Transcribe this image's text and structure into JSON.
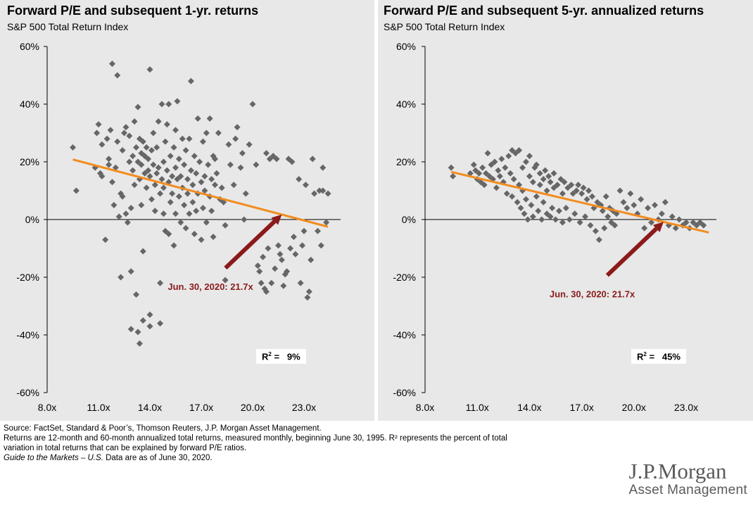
{
  "panels": [
    {
      "title": "Forward P/E and subsequent 1-yr. returns",
      "subtitle": "S&P 500 Total Return Index",
      "r2_label": "9%",
      "annotation": "Jun. 30, 2020: 21.7x"
    },
    {
      "title": "Forward P/E and subsequent 5-yr. annualized returns",
      "subtitle": "S&P 500 Total Return Index",
      "r2_label": "45%",
      "annotation": "Jun. 30, 2020: 21.7x"
    }
  ],
  "footnotes": {
    "line1": "Source: FactSet, Standard & Poor’s, Thomson Reuters, J.P. Morgan Asset Management.",
    "line2": "Returns are 12-month and 60-month annualized total returns, measured monthly, beginning June 30, 1995. R² represents the percent of total",
    "line3": "variation in total returns that can be explained by forward P/E ratios.",
    "line4_italic": "Guide to the Markets – U.S.",
    "line4_rest": " Data are as of June 30, 2020."
  },
  "logo": {
    "line1": "J.P.Morgan",
    "line2": "Asset Management"
  },
  "colors": {
    "points": "#666666",
    "trend": "#f28c1e",
    "arrow": "#8b1a1a",
    "panel_bg": "#e8e8e8"
  },
  "chart_data": [
    {
      "type": "scatter",
      "title": "Forward P/E and subsequent 1-yr. returns",
      "subtitle": "S&P 500 Total Return Index",
      "xlim": [
        8.0,
        24.5
      ],
      "ylim": [
        -60,
        60
      ],
      "x_ticks": [
        8,
        11,
        14,
        17,
        20,
        23
      ],
      "x_tick_labels": [
        "8.0x",
        "11.0x",
        "14.0x",
        "17.0x",
        "20.0x",
        "23.0x"
      ],
      "y_ticks": [
        60,
        40,
        20,
        0,
        -20,
        -40,
        -60
      ],
      "y_tick_labels": [
        "60%",
        "40%",
        "20%",
        "0%",
        "-20%",
        "-40%",
        "-60%"
      ],
      "grid": false,
      "r_squared": 9,
      "trendline": [
        [
          9.5,
          20.8
        ],
        [
          24.4,
          -2.5
        ]
      ],
      "current_pe": 21.7,
      "annotation": "Jun. 30, 2020: 21.7x",
      "points": [
        [
          9.5,
          25
        ],
        [
          9.7,
          10
        ],
        [
          10.8,
          18
        ],
        [
          10.9,
          30
        ],
        [
          11.0,
          33
        ],
        [
          11.1,
          16
        ],
        [
          11.2,
          15
        ],
        [
          11.2,
          26
        ],
        [
          11.4,
          -7
        ],
        [
          11.5,
          28
        ],
        [
          11.6,
          19
        ],
        [
          11.6,
          21
        ],
        [
          11.7,
          31
        ],
        [
          11.8,
          54
        ],
        [
          11.8,
          13
        ],
        [
          11.9,
          5
        ],
        [
          12.0,
          18
        ],
        [
          12.1,
          50
        ],
        [
          12.1,
          27
        ],
        [
          12.2,
          1
        ],
        [
          12.3,
          -20
        ],
        [
          12.3,
          9
        ],
        [
          12.4,
          24
        ],
        [
          12.4,
          8
        ],
        [
          12.5,
          30
        ],
        [
          12.6,
          32
        ],
        [
          12.6,
          2
        ],
        [
          12.7,
          -1
        ],
        [
          12.8,
          20
        ],
        [
          12.8,
          29
        ],
        [
          12.9,
          -18
        ],
        [
          12.9,
          -38
        ],
        [
          12.9,
          4
        ],
        [
          13.0,
          17
        ],
        [
          13.0,
          22
        ],
        [
          13.1,
          34
        ],
        [
          13.1,
          12
        ],
        [
          13.2,
          25
        ],
        [
          13.2,
          -26
        ],
        [
          13.3,
          39
        ],
        [
          13.3,
          20
        ],
        [
          13.3,
          -39
        ],
        [
          13.4,
          -43
        ],
        [
          13.4,
          14
        ],
        [
          13.4,
          28
        ],
        [
          13.5,
          23
        ],
        [
          13.5,
          19
        ],
        [
          13.5,
          5
        ],
        [
          13.6,
          -35
        ],
        [
          13.6,
          -11
        ],
        [
          13.6,
          27
        ],
        [
          13.7,
          16
        ],
        [
          13.7,
          22
        ],
        [
          13.8,
          11
        ],
        [
          13.8,
          25
        ],
        [
          13.9,
          17
        ],
        [
          13.9,
          21
        ],
        [
          14.0,
          52
        ],
        [
          14.0,
          -33
        ],
        [
          14.0,
          -37
        ],
        [
          14.0,
          15
        ],
        [
          14.1,
          24
        ],
        [
          14.1,
          7
        ],
        [
          14.2,
          19
        ],
        [
          14.2,
          30
        ],
        [
          14.3,
          12
        ],
        [
          14.3,
          3
        ],
        [
          14.4,
          16
        ],
        [
          14.4,
          25
        ],
        [
          14.5,
          18
        ],
        [
          14.5,
          34
        ],
        [
          14.6,
          9
        ],
        [
          14.6,
          -22
        ],
        [
          14.6,
          -36
        ],
        [
          14.7,
          14
        ],
        [
          14.7,
          40
        ],
        [
          14.8,
          2
        ],
        [
          14.8,
          20
        ],
        [
          14.8,
          11
        ],
        [
          14.9,
          27
        ],
        [
          14.9,
          -4
        ],
        [
          15.0,
          17
        ],
        [
          15.0,
          33
        ],
        [
          15.1,
          13
        ],
        [
          15.1,
          -5
        ],
        [
          15.1,
          40
        ],
        [
          15.2,
          6
        ],
        [
          15.2,
          22
        ],
        [
          15.3,
          15
        ],
        [
          15.3,
          9
        ],
        [
          15.4,
          -9
        ],
        [
          15.4,
          25
        ],
        [
          15.5,
          31
        ],
        [
          15.5,
          18
        ],
        [
          15.5,
          2
        ],
        [
          15.6,
          14
        ],
        [
          15.6,
          41
        ],
        [
          15.7,
          8
        ],
        [
          15.7,
          21
        ],
        [
          15.8,
          -1
        ],
        [
          15.8,
          15
        ],
        [
          15.9,
          28
        ],
        [
          15.9,
          11
        ],
        [
          16.0,
          5
        ],
        [
          16.0,
          19
        ],
        [
          16.1,
          24
        ],
        [
          16.1,
          -3
        ],
        [
          16.2,
          14
        ],
        [
          16.2,
          9
        ],
        [
          16.3,
          28
        ],
        [
          16.3,
          2
        ],
        [
          16.4,
          48
        ],
        [
          16.4,
          17
        ],
        [
          16.5,
          6
        ],
        [
          16.5,
          12
        ],
        [
          16.6,
          22
        ],
        [
          16.6,
          -5
        ],
        [
          16.7,
          16
        ],
        [
          16.7,
          3
        ],
        [
          16.8,
          35
        ],
        [
          16.8,
          9
        ],
        [
          16.9,
          20
        ],
        [
          17.0,
          13
        ],
        [
          17.0,
          -7
        ],
        [
          17.1,
          27
        ],
        [
          17.1,
          4
        ],
        [
          17.2,
          15
        ],
        [
          17.2,
          10
        ],
        [
          17.3,
          30
        ],
        [
          17.3,
          -1
        ],
        [
          17.4,
          19
        ],
        [
          17.5,
          8
        ],
        [
          17.5,
          35
        ],
        [
          17.6,
          14
        ],
        [
          17.6,
          3
        ],
        [
          17.7,
          22
        ],
        [
          17.7,
          -6
        ],
        [
          17.8,
          12
        ],
        [
          17.8,
          21
        ],
        [
          17.9,
          16
        ],
        [
          18.0,
          30
        ],
        [
          18.1,
          7
        ],
        [
          18.2,
          11
        ],
        [
          18.3,
          6
        ],
        [
          18.4,
          -2
        ],
        [
          18.4,
          -21
        ],
        [
          18.6,
          26
        ],
        [
          18.7,
          19
        ],
        [
          18.9,
          12
        ],
        [
          19.0,
          28
        ],
        [
          19.1,
          32
        ],
        [
          19.3,
          18
        ],
        [
          19.4,
          23
        ],
        [
          19.5,
          0
        ],
        [
          19.6,
          9
        ],
        [
          19.8,
          26
        ],
        [
          20.0,
          40
        ],
        [
          20.2,
          19
        ],
        [
          20.3,
          -16
        ],
        [
          20.4,
          -18
        ],
        [
          20.5,
          -22
        ],
        [
          20.6,
          -13
        ],
        [
          20.7,
          -24
        ],
        [
          20.8,
          23
        ],
        [
          20.8,
          -25
        ],
        [
          20.9,
          -10
        ],
        [
          21.0,
          21
        ],
        [
          21.1,
          -22
        ],
        [
          21.2,
          22
        ],
        [
          21.3,
          -17
        ],
        [
          21.4,
          21
        ],
        [
          21.5,
          -9
        ],
        [
          21.6,
          -12
        ],
        [
          21.7,
          -14
        ],
        [
          21.8,
          -23
        ],
        [
          21.9,
          -19
        ],
        [
          22.0,
          -18
        ],
        [
          22.1,
          21
        ],
        [
          22.2,
          -10
        ],
        [
          22.3,
          20
        ],
        [
          22.4,
          -6
        ],
        [
          22.5,
          -12
        ],
        [
          22.7,
          14
        ],
        [
          22.8,
          -22
        ],
        [
          22.9,
          -9
        ],
        [
          23.0,
          -4
        ],
        [
          23.1,
          12
        ],
        [
          23.2,
          -27
        ],
        [
          23.3,
          -25
        ],
        [
          23.4,
          -14
        ],
        [
          23.5,
          21
        ],
        [
          23.6,
          9
        ],
        [
          23.8,
          -4
        ],
        [
          23.9,
          10
        ],
        [
          24.0,
          -9
        ],
        [
          24.1,
          18
        ],
        [
          24.1,
          10
        ],
        [
          24.3,
          -1
        ],
        [
          24.4,
          9
        ]
      ]
    },
    {
      "type": "scatter",
      "title": "Forward P/E and subsequent 5-yr. annualized returns",
      "subtitle": "S&P 500 Total Return Index",
      "xlim": [
        8.0,
        24.5
      ],
      "ylim": [
        -60,
        60
      ],
      "x_ticks": [
        8,
        11,
        14,
        17,
        20,
        23
      ],
      "x_tick_labels": [
        "8.0x",
        "11.0x",
        "14.0x",
        "17.0x",
        "20.0x",
        "23.0x"
      ],
      "y_ticks": [
        60,
        40,
        20,
        0,
        -20,
        -40,
        -60
      ],
      "y_tick_labels": [
        "60%",
        "40%",
        "20%",
        "0%",
        "-20%",
        "-40%",
        "-60%"
      ],
      "grid": false,
      "r_squared": 45,
      "trendline": [
        [
          9.5,
          16.5
        ],
        [
          24.3,
          -4.5
        ]
      ],
      "current_pe": 21.7,
      "annotation": "Jun. 30, 2020: 21.7x",
      "points": [
        [
          9.5,
          18
        ],
        [
          9.6,
          15
        ],
        [
          10.6,
          16
        ],
        [
          10.8,
          19
        ],
        [
          10.9,
          17
        ],
        [
          11.0,
          14
        ],
        [
          11.1,
          16
        ],
        [
          11.2,
          13
        ],
        [
          11.3,
          18
        ],
        [
          11.4,
          12
        ],
        [
          11.5,
          16
        ],
        [
          11.6,
          23
        ],
        [
          11.7,
          15
        ],
        [
          11.8,
          19
        ],
        [
          11.9,
          14
        ],
        [
          12.0,
          20
        ],
        [
          12.1,
          11
        ],
        [
          12.2,
          17
        ],
        [
          12.3,
          15
        ],
        [
          12.4,
          21
        ],
        [
          12.5,
          13
        ],
        [
          12.6,
          18
        ],
        [
          12.7,
          9
        ],
        [
          12.8,
          22
        ],
        [
          12.9,
          16
        ],
        [
          13.0,
          24
        ],
        [
          13.0,
          8
        ],
        [
          13.1,
          14
        ],
        [
          13.2,
          23
        ],
        [
          13.3,
          6
        ],
        [
          13.4,
          12
        ],
        [
          13.4,
          24
        ],
        [
          13.5,
          4
        ],
        [
          13.6,
          18
        ],
        [
          13.6,
          10
        ],
        [
          13.7,
          2
        ],
        [
          13.8,
          20
        ],
        [
          13.8,
          7
        ],
        [
          13.9,
          0
        ],
        [
          14.0,
          15
        ],
        [
          14.0,
          22
        ],
        [
          14.1,
          5
        ],
        [
          14.2,
          13
        ],
        [
          14.2,
          1
        ],
        [
          14.3,
          18
        ],
        [
          14.4,
          8
        ],
        [
          14.4,
          19
        ],
        [
          14.5,
          3
        ],
        [
          14.6,
          12
        ],
        [
          14.6,
          16
        ],
        [
          14.7,
          0
        ],
        [
          14.8,
          14
        ],
        [
          14.8,
          6
        ],
        [
          14.9,
          17
        ],
        [
          15.0,
          2
        ],
        [
          15.0,
          10
        ],
        [
          15.1,
          15
        ],
        [
          15.2,
          1
        ],
        [
          15.2,
          13
        ],
        [
          15.3,
          4
        ],
        [
          15.4,
          11
        ],
        [
          15.4,
          16
        ],
        [
          15.5,
          0
        ],
        [
          15.6,
          12
        ],
        [
          15.7,
          3
        ],
        [
          15.8,
          14
        ],
        [
          15.9,
          9
        ],
        [
          15.9,
          -1
        ],
        [
          16.0,
          13
        ],
        [
          16.1,
          4
        ],
        [
          16.2,
          11
        ],
        [
          16.3,
          0
        ],
        [
          16.4,
          12
        ],
        [
          16.5,
          9
        ],
        [
          16.6,
          2
        ],
        [
          16.7,
          10
        ],
        [
          16.8,
          12
        ],
        [
          16.9,
          -1
        ],
        [
          17.0,
          9
        ],
        [
          17.1,
          11
        ],
        [
          17.2,
          1
        ],
        [
          17.3,
          7
        ],
        [
          17.4,
          10
        ],
        [
          17.5,
          -2
        ],
        [
          17.6,
          8
        ],
        [
          17.7,
          4
        ],
        [
          17.8,
          -4
        ],
        [
          17.9,
          6
        ],
        [
          18.0,
          -7
        ],
        [
          18.1,
          5
        ],
        [
          18.2,
          3
        ],
        [
          18.3,
          -3
        ],
        [
          18.4,
          8
        ],
        [
          18.5,
          1
        ],
        [
          18.6,
          4
        ],
        [
          18.7,
          -1
        ],
        [
          18.8,
          3
        ],
        [
          18.9,
          -2
        ],
        [
          19.0,
          2
        ],
        [
          19.2,
          10
        ],
        [
          19.4,
          6
        ],
        [
          19.6,
          4
        ],
        [
          19.8,
          9
        ],
        [
          20.0,
          5
        ],
        [
          20.2,
          2
        ],
        [
          20.4,
          7
        ],
        [
          20.6,
          -3
        ],
        [
          20.8,
          4
        ],
        [
          21.0,
          -1
        ],
        [
          21.2,
          5
        ],
        [
          21.4,
          0
        ],
        [
          21.6,
          2
        ],
        [
          21.8,
          6
        ],
        [
          22.0,
          -2
        ],
        [
          22.2,
          1
        ],
        [
          22.4,
          -3
        ],
        [
          22.6,
          0
        ],
        [
          22.8,
          -2
        ],
        [
          23.0,
          -1
        ],
        [
          23.2,
          -3
        ],
        [
          23.4,
          -1
        ],
        [
          23.6,
          -2
        ],
        [
          23.8,
          -1
        ],
        [
          24.0,
          -2
        ]
      ]
    }
  ]
}
